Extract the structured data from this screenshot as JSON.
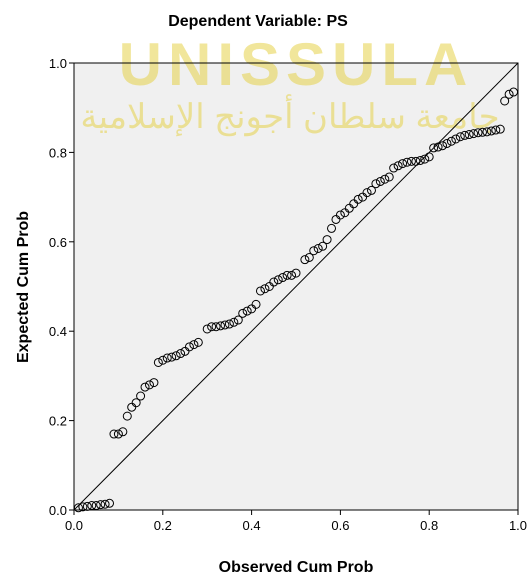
{
  "watermark": {
    "name": "UNISSULA",
    "arabic": "جامعة سلطان أجونج الإسلامية"
  },
  "chart_data": {
    "type": "scatter",
    "title": "Dependent Variable: PS",
    "x_label": "Observed Cum Prob",
    "y_label": "Expected Cum Prob",
    "xlim": [
      0,
      1
    ],
    "ylim": [
      0,
      1
    ],
    "xticks": [
      {
        "value": 0,
        "label": "0.0"
      },
      {
        "value": 0.2,
        "label": "0.2"
      },
      {
        "value": 0.4,
        "label": "0.4"
      },
      {
        "value": 0.6,
        "label": "0.6"
      },
      {
        "value": 0.8,
        "label": "0.8"
      },
      {
        "value": 1,
        "label": "1.0"
      }
    ],
    "yticks": [
      {
        "value": 0,
        "label": "0.0"
      },
      {
        "value": 0.2,
        "label": "0.2"
      },
      {
        "value": 0.4,
        "label": "0.4"
      },
      {
        "value": 0.6,
        "label": "0.6"
      },
      {
        "value": 0.8,
        "label": "0.8"
      },
      {
        "value": 1,
        "label": "1.0"
      }
    ],
    "reference_line": true,
    "color": "#000000",
    "x": [
      0.01,
      0.02,
      0.03,
      0.04,
      0.05,
      0.06,
      0.07,
      0.08,
      0.09,
      0.1,
      0.11,
      0.12,
      0.13,
      0.14,
      0.15,
      0.16,
      0.17,
      0.18,
      0.19,
      0.2,
      0.21,
      0.22,
      0.23,
      0.24,
      0.25,
      0.26,
      0.27,
      0.28,
      0.3,
      0.31,
      0.32,
      0.33,
      0.34,
      0.35,
      0.36,
      0.37,
      0.38,
      0.39,
      0.4,
      0.41,
      0.42,
      0.43,
      0.44,
      0.45,
      0.46,
      0.47,
      0.48,
      0.49,
      0.5,
      0.52,
      0.53,
      0.54,
      0.55,
      0.56,
      0.57,
      0.58,
      0.59,
      0.6,
      0.61,
      0.62,
      0.63,
      0.64,
      0.65,
      0.66,
      0.67,
      0.68,
      0.69,
      0.7,
      0.71,
      0.72,
      0.73,
      0.74,
      0.75,
      0.76,
      0.77,
      0.78,
      0.79,
      0.8,
      0.81,
      0.82,
      0.83,
      0.84,
      0.85,
      0.86,
      0.87,
      0.88,
      0.89,
      0.9,
      0.91,
      0.92,
      0.93,
      0.94,
      0.95,
      0.96,
      0.97,
      0.98,
      0.99
    ],
    "values": [
      0.005,
      0.007,
      0.008,
      0.01,
      0.01,
      0.012,
      0.013,
      0.015,
      0.17,
      0.17,
      0.175,
      0.21,
      0.23,
      0.24,
      0.255,
      0.275,
      0.28,
      0.285,
      0.33,
      0.335,
      0.34,
      0.342,
      0.345,
      0.35,
      0.355,
      0.365,
      0.37,
      0.375,
      0.405,
      0.41,
      0.41,
      0.412,
      0.414,
      0.416,
      0.42,
      0.425,
      0.44,
      0.445,
      0.45,
      0.46,
      0.49,
      0.495,
      0.5,
      0.51,
      0.515,
      0.52,
      0.525,
      0.525,
      0.53,
      0.56,
      0.565,
      0.58,
      0.585,
      0.59,
      0.605,
      0.63,
      0.65,
      0.66,
      0.665,
      0.675,
      0.685,
      0.695,
      0.7,
      0.71,
      0.715,
      0.73,
      0.735,
      0.74,
      0.745,
      0.765,
      0.77,
      0.775,
      0.778,
      0.78,
      0.78,
      0.782,
      0.785,
      0.79,
      0.81,
      0.812,
      0.815,
      0.82,
      0.825,
      0.83,
      0.835,
      0.838,
      0.84,
      0.842,
      0.844,
      0.845,
      0.846,
      0.848,
      0.85,
      0.852,
      0.915,
      0.93,
      0.935
    ]
  }
}
